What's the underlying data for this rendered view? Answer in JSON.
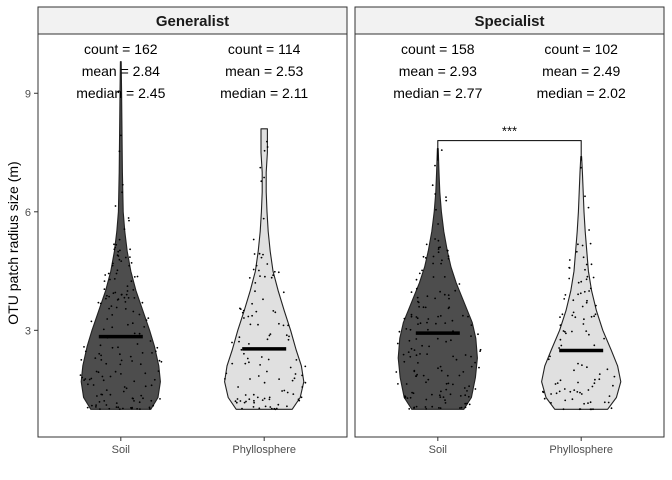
{
  "chart_data": {
    "type": "violin",
    "ylabel": "OTU patch radius size (m)",
    "xlabel": "",
    "ylim": [
      0.3,
      10.5
    ],
    "yticks": [
      3,
      6,
      9
    ],
    "categories": [
      "Soil",
      "Phyllosphere"
    ],
    "fill_colors": {
      "Soil": "#4d4d4d",
      "Phyllosphere": "#e0e0e0"
    },
    "grid": false,
    "facets": [
      {
        "name": "Generalist",
        "groups": [
          {
            "category": "Soil",
            "count": 162,
            "mean": 2.84,
            "median": 2.45,
            "count_label": "count = 162",
            "mean_label": "mean = 2.84",
            "median_label": "median = 2.45",
            "min": 1.0,
            "max": 9.8,
            "density": [
              [
                1.0,
                0.75
              ],
              [
                1.3,
                0.93
              ],
              [
                1.7,
                0.99
              ],
              [
                2.1,
                0.95
              ],
              [
                2.6,
                0.84
              ],
              [
                3.0,
                0.72
              ],
              [
                3.5,
                0.55
              ],
              [
                4.0,
                0.38
              ],
              [
                4.5,
                0.25
              ],
              [
                5.0,
                0.16
              ],
              [
                5.5,
                0.1
              ],
              [
                6.0,
                0.06
              ],
              [
                7.0,
                0.04
              ],
              [
                8.0,
                0.03
              ],
              [
                9.0,
                0.02
              ],
              [
                9.8,
                0.01
              ]
            ]
          },
          {
            "category": "Phyllosphere",
            "count": 114,
            "mean": 2.53,
            "median": 2.11,
            "count_label": "count = 114",
            "mean_label": "mean = 2.53",
            "median_label": "median = 2.11",
            "min": 1.0,
            "max": 8.1,
            "density": [
              [
                1.0,
                0.7
              ],
              [
                1.3,
                0.9
              ],
              [
                1.7,
                0.99
              ],
              [
                2.1,
                0.93
              ],
              [
                2.5,
                0.8
              ],
              [
                3.0,
                0.66
              ],
              [
                3.5,
                0.5
              ],
              [
                4.0,
                0.35
              ],
              [
                4.5,
                0.22
              ],
              [
                5.0,
                0.15
              ],
              [
                5.5,
                0.1
              ],
              [
                6.0,
                0.07
              ],
              [
                6.5,
                0.05
              ],
              [
                7.0,
                0.05
              ],
              [
                7.5,
                0.08
              ],
              [
                8.1,
                0.08
              ]
            ]
          }
        ]
      },
      {
        "name": "Specialist",
        "groups": [
          {
            "category": "Soil",
            "count": 158,
            "mean": 2.93,
            "median": 2.77,
            "count_label": "count = 158",
            "mean_label": "mean = 2.93",
            "median_label": "median = 2.77",
            "min": 1.0,
            "max": 7.6,
            "density": [
              [
                1.0,
                0.65
              ],
              [
                1.3,
                0.84
              ],
              [
                1.8,
                0.94
              ],
              [
                2.3,
                0.99
              ],
              [
                2.8,
                0.95
              ],
              [
                3.2,
                0.86
              ],
              [
                3.7,
                0.66
              ],
              [
                4.2,
                0.46
              ],
              [
                4.6,
                0.33
              ],
              [
                5.0,
                0.24
              ],
              [
                5.5,
                0.15
              ],
              [
                6.0,
                0.09
              ],
              [
                6.5,
                0.05
              ],
              [
                7.0,
                0.03
              ],
              [
                7.6,
                0.01
              ]
            ]
          },
          {
            "category": "Phyllosphere",
            "count": 102,
            "mean": 2.49,
            "median": 2.02,
            "count_label": "count = 102",
            "mean_label": "mean = 2.49",
            "median_label": "median = 2.02",
            "min": 1.0,
            "max": 7.4,
            "density": [
              [
                1.0,
                0.66
              ],
              [
                1.3,
                0.88
              ],
              [
                1.7,
                0.99
              ],
              [
                2.1,
                0.91
              ],
              [
                2.5,
                0.75
              ],
              [
                3.0,
                0.54
              ],
              [
                3.5,
                0.38
              ],
              [
                4.0,
                0.26
              ],
              [
                4.5,
                0.18
              ],
              [
                5.0,
                0.14
              ],
              [
                5.5,
                0.1
              ],
              [
                6.0,
                0.07
              ],
              [
                6.5,
                0.05
              ],
              [
                7.0,
                0.03
              ],
              [
                7.4,
                0.01
              ]
            ]
          }
        ],
        "significance": {
          "label": "***",
          "between": [
            "Soil",
            "Phyllosphere"
          ],
          "y": 7.8
        }
      }
    ]
  }
}
